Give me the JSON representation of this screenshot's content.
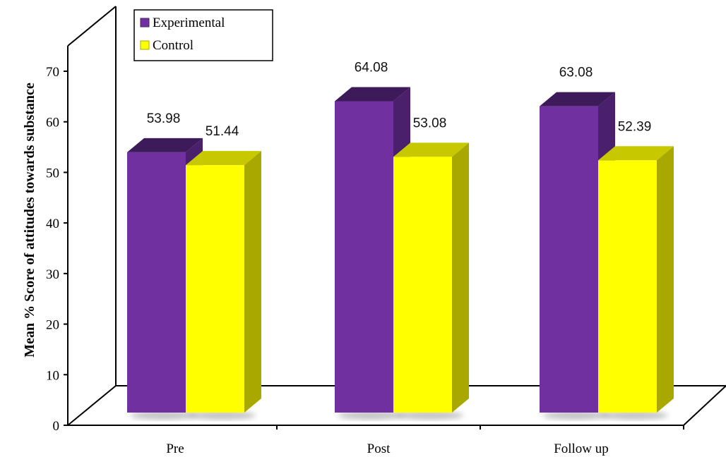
{
  "chart_data": {
    "type": "bar",
    "categories": [
      "Pre",
      "Post",
      "Follow up"
    ],
    "series": [
      {
        "name": "Experimental",
        "values": [
          53.98,
          64.08,
          63.08
        ],
        "labels": [
          "53.98",
          "64.08",
          "63.08"
        ]
      },
      {
        "name": "Control",
        "values": [
          51.44,
          53.08,
          52.39
        ],
        "labels": [
          "51.44",
          "53.08",
          "52.39"
        ]
      }
    ],
    "ylabel": "Mean % Score of attitudes towards substance",
    "ylim": [
      0,
      70
    ],
    "yticks": [
      0,
      10,
      20,
      30,
      40,
      50,
      60,
      70
    ],
    "legend_position": "top-left",
    "style": "3d-bar",
    "colors": {
      "Experimental": {
        "front": "#7030a0",
        "side": "#4a1f6b",
        "top": "#3d1a5a"
      },
      "Control": {
        "front": "#ffff00",
        "side": "#a8a800",
        "top": "#c8c800"
      }
    }
  }
}
